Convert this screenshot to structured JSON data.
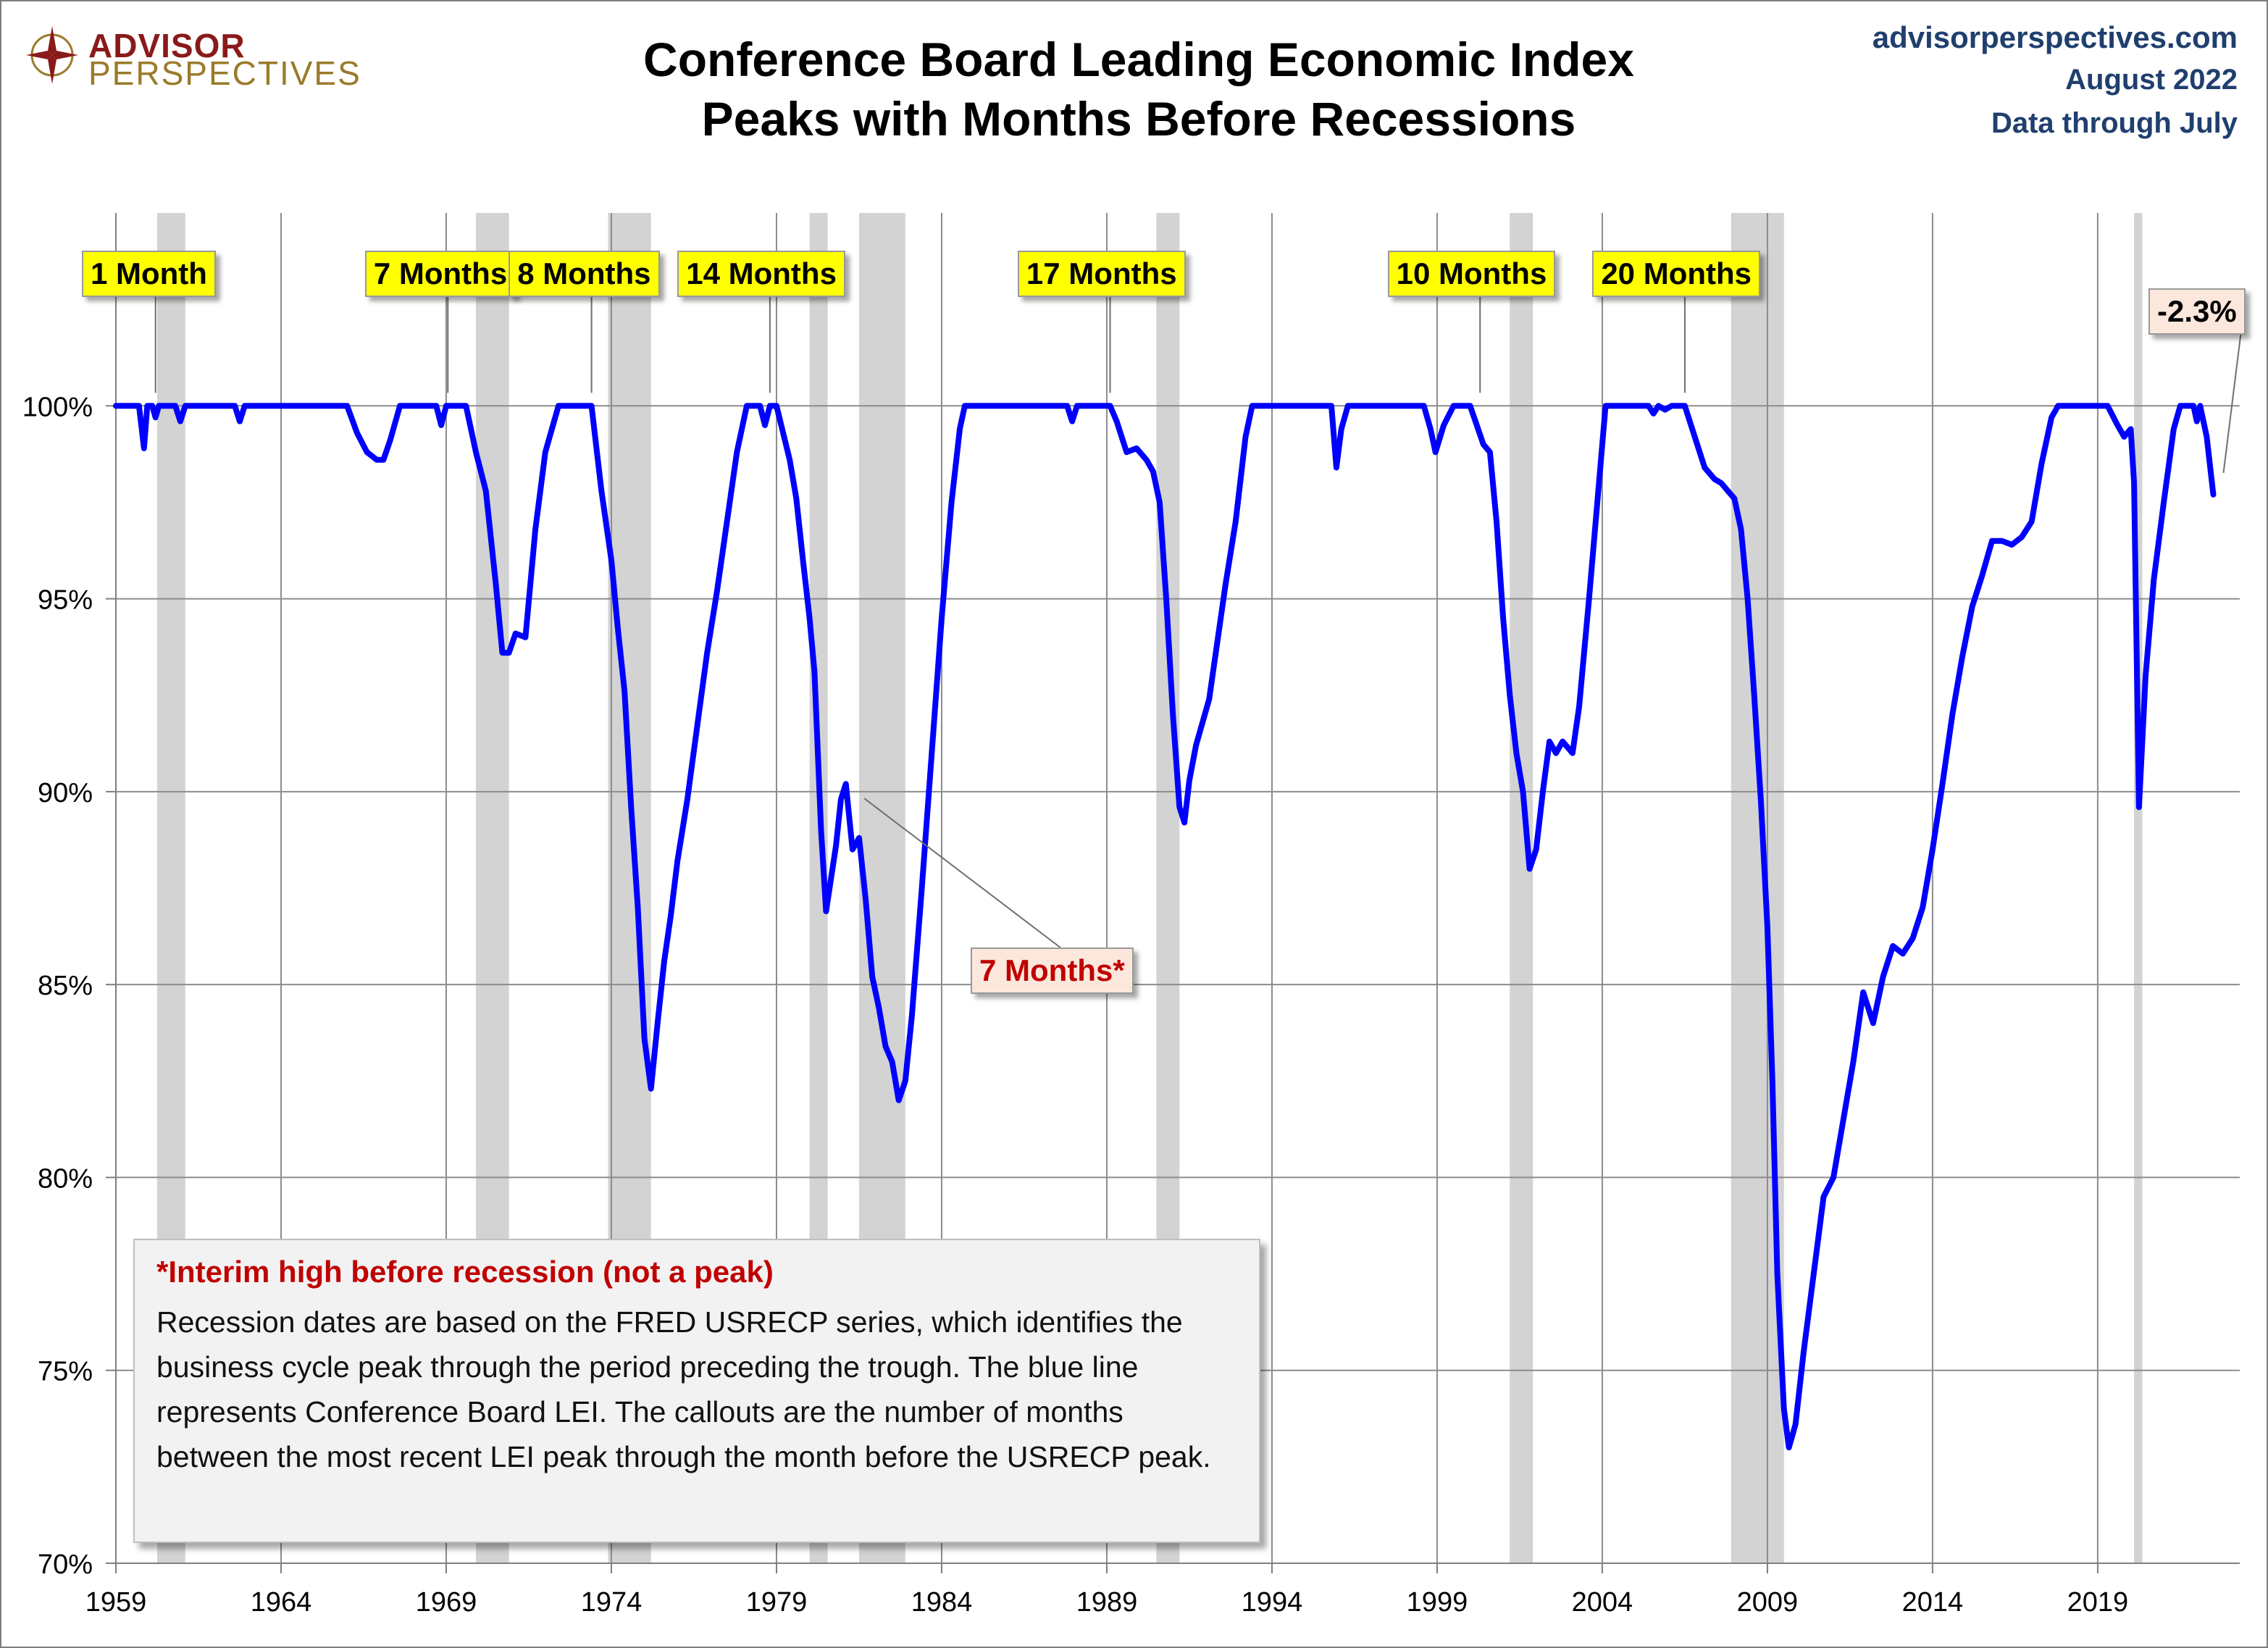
{
  "header": {
    "logo_line1": "ADVISOR",
    "logo_line2": "PERSPECTIVES",
    "title_line1": "Conference Board Leading Economic Index",
    "title_line2": "Peaks with Months Before Recessions",
    "source_site": "advisorperspectives.com",
    "source_date": "August 2022",
    "source_through": "Data through July"
  },
  "colors": {
    "line": "#0000ff",
    "recession_band": "#d3d3d3",
    "callout_fill": "#ffff00",
    "callout_alt_fill": "#fbe7dc",
    "callout_alt_text": "#c00000",
    "source_text": "#1f3f6e",
    "logo_red": "#8a1a1a",
    "logo_gold": "#9b7a2a"
  },
  "note": {
    "title": "*Interim high before recession (not a peak)",
    "text": "Recession dates are based on the FRED USRECP series, which identifies the business cycle peak through the period preceding the trough. The blue line represents Conference Board LEI. The callouts are the number of months between the most recent LEI peak through the month  before the USRECP peak."
  },
  "chart_data": {
    "type": "line",
    "title": "Conference Board Leading Economic Index Peaks with Months Before Recessions",
    "xlabel": "",
    "ylabel": "",
    "xlim": [
      1959.0,
      2023.3
    ],
    "ylim": [
      70,
      105
    ],
    "x_ticks": [
      1959,
      1964,
      1969,
      1974,
      1979,
      1984,
      1989,
      1994,
      1999,
      2004,
      2009,
      2014,
      2019
    ],
    "x_tick_labels": [
      "1959",
      "1964",
      "1969",
      "1974",
      "1979",
      "1984",
      "1989",
      "1994",
      "1999",
      "2004",
      "2009",
      "2014",
      "2019"
    ],
    "y_ticks": [
      70,
      75,
      80,
      85,
      90,
      95,
      100
    ],
    "y_tick_labels": [
      "70%",
      "75%",
      "80%",
      "85%",
      "90%",
      "95%",
      "100%"
    ],
    "grid": true,
    "legend": "none",
    "recessions": [
      [
        1960.25,
        1961.1
      ],
      [
        1969.9,
        1970.9
      ],
      [
        1973.9,
        1975.2
      ],
      [
        1980.0,
        1980.55
      ],
      [
        1981.5,
        1982.9
      ],
      [
        1990.5,
        1991.2
      ],
      [
        2001.2,
        2001.9
      ],
      [
        2007.9,
        2009.5
      ],
      [
        2020.1,
        2020.35
      ]
    ],
    "series": [
      {
        "values": [
          [
            1959.0,
            100
          ],
          [
            1959.7,
            100
          ],
          [
            1959.85,
            98.9
          ],
          [
            1959.95,
            100
          ],
          [
            1960.1,
            100
          ],
          [
            1960.2,
            99.7
          ],
          [
            1960.3,
            100
          ],
          [
            1960.8,
            100
          ],
          [
            1960.95,
            99.6
          ],
          [
            1961.1,
            100
          ],
          [
            1962.6,
            100
          ],
          [
            1962.75,
            99.6
          ],
          [
            1962.9,
            100
          ],
          [
            1966.0,
            100
          ],
          [
            1966.3,
            99.3
          ],
          [
            1966.6,
            98.8
          ],
          [
            1966.9,
            98.6
          ],
          [
            1967.1,
            98.6
          ],
          [
            1967.3,
            99.1
          ],
          [
            1967.6,
            100
          ],
          [
            1968.7,
            100
          ],
          [
            1968.85,
            99.5
          ],
          [
            1969.0,
            100
          ],
          [
            1969.6,
            100
          ],
          [
            1969.9,
            98.8
          ],
          [
            1970.2,
            97.8
          ],
          [
            1970.5,
            95.4
          ],
          [
            1970.7,
            93.6
          ],
          [
            1970.9,
            93.6
          ],
          [
            1971.1,
            94.1
          ],
          [
            1971.4,
            94.0
          ],
          [
            1971.7,
            96.8
          ],
          [
            1972.0,
            98.8
          ],
          [
            1972.4,
            100
          ],
          [
            1973.4,
            100
          ],
          [
            1973.7,
            97.8
          ],
          [
            1974.0,
            96.0
          ],
          [
            1974.2,
            94.2
          ],
          [
            1974.4,
            92.6
          ],
          [
            1974.6,
            89.6
          ],
          [
            1974.8,
            87.0
          ],
          [
            1975.0,
            83.6
          ],
          [
            1975.2,
            82.3
          ],
          [
            1975.4,
            84.0
          ],
          [
            1975.6,
            85.6
          ],
          [
            1975.8,
            86.8
          ],
          [
            1976.0,
            88.2
          ],
          [
            1976.3,
            89.8
          ],
          [
            1976.6,
            91.7
          ],
          [
            1976.9,
            93.6
          ],
          [
            1977.2,
            95.2
          ],
          [
            1977.5,
            97.0
          ],
          [
            1977.8,
            98.8
          ],
          [
            1978.1,
            100
          ],
          [
            1978.5,
            100
          ],
          [
            1978.65,
            99.5
          ],
          [
            1978.8,
            100
          ],
          [
            1979.0,
            100
          ],
          [
            1979.2,
            99.3
          ],
          [
            1979.4,
            98.6
          ],
          [
            1979.6,
            97.6
          ],
          [
            1979.8,
            96.0
          ],
          [
            1980.0,
            94.5
          ],
          [
            1980.15,
            93.1
          ],
          [
            1980.35,
            89.0
          ],
          [
            1980.5,
            86.9
          ],
          [
            1980.8,
            88.6
          ],
          [
            1980.95,
            89.8
          ],
          [
            1981.1,
            90.2
          ],
          [
            1981.3,
            88.5
          ],
          [
            1981.5,
            88.8
          ],
          [
            1981.7,
            87.2
          ],
          [
            1981.9,
            85.2
          ],
          [
            1982.1,
            84.4
          ],
          [
            1982.3,
            83.4
          ],
          [
            1982.5,
            83.0
          ],
          [
            1982.7,
            82.0
          ],
          [
            1982.9,
            82.5
          ],
          [
            1983.1,
            84.2
          ],
          [
            1983.4,
            87.5
          ],
          [
            1983.7,
            91.0
          ],
          [
            1984.0,
            94.5
          ],
          [
            1984.3,
            97.5
          ],
          [
            1984.55,
            99.4
          ],
          [
            1984.7,
            100
          ],
          [
            1987.8,
            100
          ],
          [
            1987.95,
            99.6
          ],
          [
            1988.1,
            100
          ],
          [
            1989.1,
            100
          ],
          [
            1989.3,
            99.6
          ],
          [
            1989.6,
            98.8
          ],
          [
            1989.9,
            98.9
          ],
          [
            1990.2,
            98.6
          ],
          [
            1990.4,
            98.3
          ],
          [
            1990.6,
            97.5
          ],
          [
            1990.8,
            95.0
          ],
          [
            1991.0,
            92.0
          ],
          [
            1991.2,
            89.6
          ],
          [
            1991.35,
            89.2
          ],
          [
            1991.5,
            90.3
          ],
          [
            1991.7,
            91.2
          ],
          [
            1991.9,
            91.8
          ],
          [
            1992.1,
            92.4
          ],
          [
            1992.3,
            93.6
          ],
          [
            1992.6,
            95.4
          ],
          [
            1992.9,
            97.0
          ],
          [
            1993.2,
            99.2
          ],
          [
            1993.4,
            100
          ],
          [
            1995.8,
            100
          ],
          [
            1995.95,
            98.4
          ],
          [
            1996.1,
            99.4
          ],
          [
            1996.3,
            100
          ],
          [
            1998.6,
            100
          ],
          [
            1998.8,
            99.4
          ],
          [
            1998.95,
            98.8
          ],
          [
            1999.2,
            99.5
          ],
          [
            1999.5,
            100
          ],
          [
            2000.0,
            100
          ],
          [
            2000.2,
            99.5
          ],
          [
            2000.4,
            99.0
          ],
          [
            2000.6,
            98.8
          ],
          [
            2000.8,
            97.0
          ],
          [
            2001.0,
            94.5
          ],
          [
            2001.2,
            92.5
          ],
          [
            2001.4,
            91.0
          ],
          [
            2001.6,
            90.0
          ],
          [
            2001.8,
            88.0
          ],
          [
            2002.0,
            88.5
          ],
          [
            2002.2,
            90.0
          ],
          [
            2002.4,
            91.3
          ],
          [
            2002.6,
            91.0
          ],
          [
            2002.8,
            91.3
          ],
          [
            2003.1,
            91.0
          ],
          [
            2003.3,
            92.2
          ],
          [
            2003.6,
            95.0
          ],
          [
            2003.9,
            98.0
          ],
          [
            2004.1,
            100
          ],
          [
            2005.4,
            100
          ],
          [
            2005.55,
            99.8
          ],
          [
            2005.7,
            100
          ],
          [
            2005.9,
            99.9
          ],
          [
            2006.1,
            100
          ],
          [
            2006.5,
            100
          ],
          [
            2006.8,
            99.2
          ],
          [
            2007.1,
            98.4
          ],
          [
            2007.4,
            98.1
          ],
          [
            2007.6,
            98.0
          ],
          [
            2007.8,
            97.8
          ],
          [
            2008.0,
            97.6
          ],
          [
            2008.2,
            96.8
          ],
          [
            2008.4,
            95.0
          ],
          [
            2008.6,
            92.5
          ],
          [
            2008.8,
            89.8
          ],
          [
            2009.0,
            86.5
          ],
          [
            2009.15,
            82.5
          ],
          [
            2009.3,
            77.5
          ],
          [
            2009.5,
            74.0
          ],
          [
            2009.65,
            73.0
          ],
          [
            2009.85,
            73.6
          ],
          [
            2010.1,
            75.5
          ],
          [
            2010.4,
            77.5
          ],
          [
            2010.7,
            79.5
          ],
          [
            2011.0,
            80.0
          ],
          [
            2011.3,
            81.5
          ],
          [
            2011.6,
            83.0
          ],
          [
            2011.9,
            84.8
          ],
          [
            2012.2,
            84.0
          ],
          [
            2012.5,
            85.2
          ],
          [
            2012.8,
            86.0
          ],
          [
            2013.1,
            85.8
          ],
          [
            2013.4,
            86.2
          ],
          [
            2013.7,
            87.0
          ],
          [
            2014.0,
            88.5
          ],
          [
            2014.3,
            90.2
          ],
          [
            2014.6,
            92.0
          ],
          [
            2014.9,
            93.5
          ],
          [
            2015.2,
            94.8
          ],
          [
            2015.5,
            95.6
          ],
          [
            2015.8,
            96.5
          ],
          [
            2016.1,
            96.5
          ],
          [
            2016.4,
            96.4
          ],
          [
            2016.7,
            96.6
          ],
          [
            2017.0,
            97.0
          ],
          [
            2017.3,
            98.5
          ],
          [
            2017.6,
            99.7
          ],
          [
            2017.8,
            100
          ],
          [
            2019.0,
            100
          ],
          [
            2019.3,
            100
          ],
          [
            2019.6,
            99.5
          ],
          [
            2019.8,
            99.2
          ],
          [
            2020.0,
            99.4
          ],
          [
            2020.1,
            98.0
          ],
          [
            2020.25,
            89.6
          ],
          [
            2020.45,
            93.0
          ],
          [
            2020.7,
            95.5
          ],
          [
            2021.0,
            97.5
          ],
          [
            2021.3,
            99.4
          ],
          [
            2021.5,
            100
          ],
          [
            2021.9,
            100
          ],
          [
            2022.0,
            99.6
          ],
          [
            2022.1,
            100
          ],
          [
            2022.3,
            99.2
          ],
          [
            2022.5,
            97.7
          ]
        ]
      }
    ],
    "callouts": [
      {
        "label": "1 Month",
        "x": 1960.2,
        "y": 100,
        "style": "peak"
      },
      {
        "label": "7 Months",
        "x": 1969.05,
        "y": 100,
        "style": "peak"
      },
      {
        "label": "8 Months",
        "x": 1973.4,
        "y": 100,
        "style": "peak"
      },
      {
        "label": "14 Months",
        "x": 1978.8,
        "y": 100,
        "style": "peak"
      },
      {
        "label": "17 Months",
        "x": 1989.1,
        "y": 100,
        "style": "peak"
      },
      {
        "label": "10 Months",
        "x": 2000.3,
        "y": 100,
        "style": "peak"
      },
      {
        "label": "20 Months",
        "x": 2006.5,
        "y": 100,
        "style": "peak"
      },
      {
        "label": "7 Months*",
        "x": 1981.0,
        "y": 90.2,
        "style": "interim"
      },
      {
        "label": "-2.3%",
        "x": 2022.5,
        "y": 97.7,
        "style": "latest"
      }
    ]
  }
}
